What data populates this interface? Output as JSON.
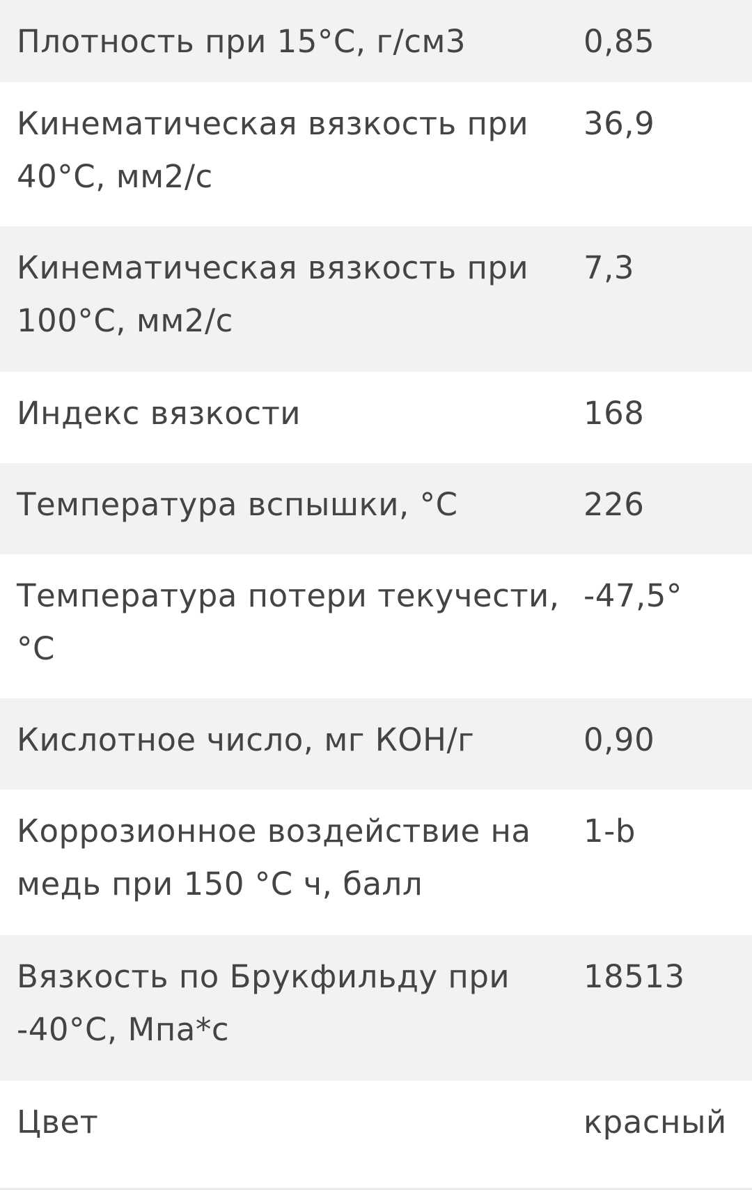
{
  "colors": {
    "stripe": "#f2f2f2",
    "text": "#444444"
  },
  "rows": [
    {
      "name": "Плотность при 15°C, г/см3",
      "value": "0,85"
    },
    {
      "name": "Кинематическая вязкость при 40°C, мм2/с",
      "value": "36,9"
    },
    {
      "name": "Кинематическая вязкость при 100°C, мм2/с",
      "value": "7,3"
    },
    {
      "name": "Индекс вязкости",
      "value": "168"
    },
    {
      "name": "Температура вспышки, °С",
      "value": "226"
    },
    {
      "name": "Температура потери текучести, °С",
      "value": "-47,5°"
    },
    {
      "name": "Кислотное число, мг КОН/г",
      "value": "0,90"
    },
    {
      "name": "Коррозионное воздействие на медь при 150 °С ч, балл",
      "value": "1-b"
    },
    {
      "name": "Вязкость по Брукфильду при -40°С, Мпа*с",
      "value": "18513"
    },
    {
      "name": "Цвет",
      "value": "красный"
    }
  ]
}
